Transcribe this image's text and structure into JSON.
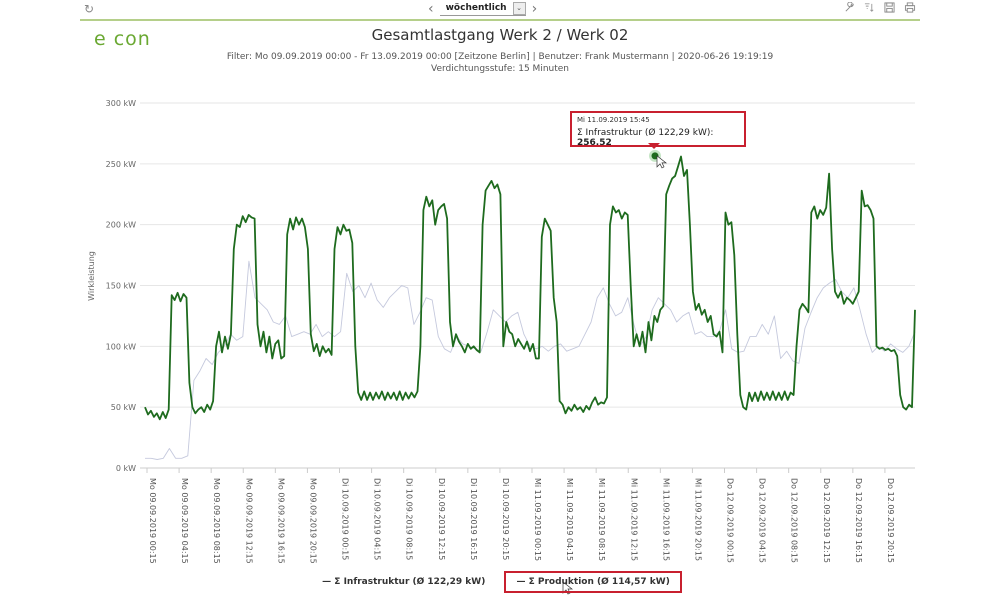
{
  "toolbar": {
    "refresh_icon": "refresh-icon",
    "prev_label": "‹",
    "next_label": "›",
    "period_value": "wöchentlich",
    "dropdown_glyph": "⌄",
    "tools": [
      {
        "name": "wrench-icon",
        "glyph": "🔧"
      },
      {
        "name": "sort-filter-icon",
        "glyph": "⇊"
      },
      {
        "name": "save-icon",
        "glyph": "💾"
      },
      {
        "name": "print-icon",
        "glyph": "🖶"
      }
    ]
  },
  "header": {
    "logo": "e con",
    "title": "Gesamtlastgang Werk 2 / Werk 02",
    "filter_line": "Filter: Mo 09.09.2019 00:00 - Fr 13.09.2019 00:00 [Zeitzone Berlin] | Benutzer: Frank Mustermann | 2020-06-26 19:19:19",
    "density_line": "Verdichtungsstufe: 15 Minuten"
  },
  "tooltip": {
    "timestamp": "Mi 11.09.2019 15:45",
    "series_label": "Σ Infrastruktur (Ø 122,29 kW): ",
    "value": "256.52"
  },
  "legend": [
    {
      "label": "— Σ Infrastruktur (Ø 122,29 kW)",
      "color": "#1e6b1e"
    },
    {
      "label": "— Σ Produktion (Ø 114,57 kW)",
      "color": "#b8bfd8"
    }
  ],
  "colors": {
    "infrastruktur": "#1e6b1e",
    "produktion": "#c5c9dd",
    "highlight": "#c8202f",
    "accent": "#b5cf8a",
    "grid": "#e6e6e6"
  },
  "chart_data": {
    "type": "line",
    "title": "Gesamtlastgang Werk 2 / Werk 02",
    "xlabel": "",
    "ylabel": "Wirkleistung",
    "ylim": [
      0,
      300
    ],
    "yticks": [
      "0 kW",
      "50 kW",
      "100 kW",
      "150 kW",
      "200 kW",
      "250 kW",
      "300 kW"
    ],
    "grid": true,
    "legend_position": "bottom",
    "x_ticks": [
      "Mo 09.09.2019 00:15",
      "Mo 09.09.2019 04:15",
      "Mo 09.09.2019 08:15",
      "Mo 09.09.2019 12:15",
      "Mo 09.09.2019 16:15",
      "Mo 09.09.2019 20:15",
      "Di 10.09.2019 00:15",
      "Di 10.09.2019 04:15",
      "Di 10.09.2019 08:15",
      "Di 10.09.2019 12:15",
      "Di 10.09.2019 16:15",
      "Di 10.09.2019 20:15",
      "Mi 11.09.2019 00:15",
      "Mi 11.09.2019 04:15",
      "Mi 11.09.2019 08:15",
      "Mi 11.09.2019 12:15",
      "Mi 11.09.2019 16:15",
      "Mi 11.09.2019 20:15",
      "Do 12.09.2019 00:15",
      "Do 12.09.2019 04:15",
      "Do 12.09.2019 08:15",
      "Do 12.09.2019 12:15",
      "Do 12.09.2019 16:15",
      "Do 12.09.2019 20:15"
    ],
    "x_hours_start": 0,
    "x_hours_end": 96,
    "series": [
      {
        "name": "Σ Infrastruktur (Ø 122,29 kW)",
        "average": 122.29,
        "color": "#1e6b1e",
        "step_hours": 0.5,
        "values": [
          50,
          44,
          47,
          42,
          45,
          40,
          46,
          41,
          48,
          142,
          138,
          144,
          137,
          143,
          140,
          70,
          50,
          45,
          48,
          50,
          46,
          52,
          48,
          55,
          100,
          112,
          95,
          108,
          98,
          110,
          180,
          200,
          198,
          207,
          202,
          208,
          206,
          205,
          118,
          100,
          112,
          95,
          108,
          90,
          102,
          105,
          90,
          92,
          192,
          205,
          196,
          206,
          200,
          205,
          198,
          180,
          110,
          96,
          102,
          92,
          100,
          95,
          98,
          93,
          180,
          198,
          192,
          200,
          195,
          196,
          185,
          100,
          62,
          56,
          63,
          56,
          62,
          56,
          62,
          57,
          63,
          56,
          62,
          57,
          62,
          56,
          63,
          56,
          62,
          57,
          62,
          58,
          63,
          100,
          212,
          223,
          215,
          220,
          200,
          212,
          215,
          217,
          205,
          120,
          100,
          110,
          104,
          100,
          95,
          102,
          98,
          100,
          97,
          95,
          200,
          228,
          232,
          236,
          230,
          233,
          225,
          100,
          120,
          112,
          110,
          100,
          106,
          102,
          98,
          104,
          96,
          102,
          90,
          90,
          190,
          205,
          200,
          195,
          140,
          120,
          55,
          52,
          45,
          50,
          47,
          52,
          48,
          50,
          46,
          51,
          48,
          54,
          58,
          52,
          54,
          53,
          58,
          200,
          215,
          210,
          212,
          205,
          210,
          208,
          150,
          100,
          110,
          100,
          112,
          95,
          120,
          105,
          125,
          120,
          130,
          133,
          225,
          232,
          238,
          240,
          248,
          256,
          240,
          245,
          200,
          145,
          130,
          135,
          126,
          130,
          120,
          125,
          110,
          108,
          112,
          95,
          210,
          200,
          202,
          175,
          110,
          60,
          50,
          48,
          62,
          55,
          62,
          55,
          63,
          56,
          62,
          56,
          63,
          56,
          62,
          56,
          63,
          56,
          62,
          60,
          100,
          130,
          135,
          132,
          128,
          210,
          215,
          205,
          212,
          208,
          214,
          242,
          180,
          145,
          140,
          145,
          135,
          140,
          138,
          135,
          140,
          145,
          228,
          215,
          216,
          212,
          205,
          100,
          98,
          99,
          97,
          98,
          96,
          97,
          92,
          60,
          50,
          48,
          52,
          50,
          130
        ],
        "tooltip_point": {
          "time": "Mi 11.09.2019 15:45",
          "value": 256.52
        }
      },
      {
        "name": "Σ Produktion (Ø 114,57 kW)",
        "average": 114.57,
        "color": "#c5c9dd",
        "step_hours": 1,
        "values": [
          8,
          8,
          7,
          8,
          16,
          8,
          8,
          10,
          72,
          80,
          90,
          85,
          95,
          100,
          110,
          105,
          108,
          170,
          140,
          135,
          130,
          120,
          118,
          125,
          108,
          110,
          112,
          110,
          118,
          108,
          112,
          108,
          112,
          160,
          145,
          150,
          140,
          152,
          138,
          132,
          140,
          145,
          150,
          148,
          118,
          128,
          140,
          138,
          108,
          98,
          95,
          108,
          102,
          100,
          98,
          96,
          112,
          130,
          125,
          120,
          125,
          128,
          110,
          100,
          98,
          100,
          96,
          100,
          102,
          96,
          98,
          100,
          110,
          120,
          140,
          148,
          135,
          125,
          128,
          140,
          118,
          100,
          108,
          130,
          140,
          135,
          130,
          120,
          125,
          128,
          110,
          112,
          108,
          108,
          112,
          130,
          98,
          95,
          96,
          108,
          108,
          118,
          110,
          125,
          90,
          96,
          88,
          86,
          115,
          128,
          140,
          148,
          152,
          155,
          145,
          140,
          148,
          130,
          110,
          95,
          100,
          96,
          102,
          98,
          95,
          100,
          112
        ]
      }
    ]
  }
}
